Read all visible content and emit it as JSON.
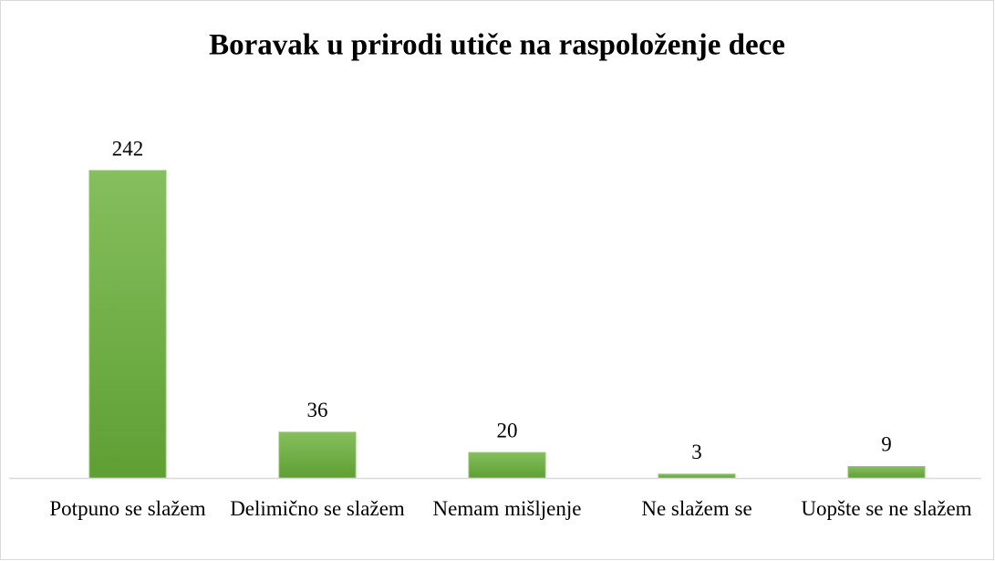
{
  "chart_data": {
    "type": "bar",
    "title": "Boravak u prirodi utiče na raspoloženje dece",
    "categories": [
      "Potpuno se slažem",
      "Delimično se slažem",
      "Nemam mišljenje",
      "Ne slažem se",
      "Uopšte se ne slažem"
    ],
    "values": [
      242,
      36,
      20,
      3,
      9
    ],
    "color": "#6aaa3c"
  }
}
